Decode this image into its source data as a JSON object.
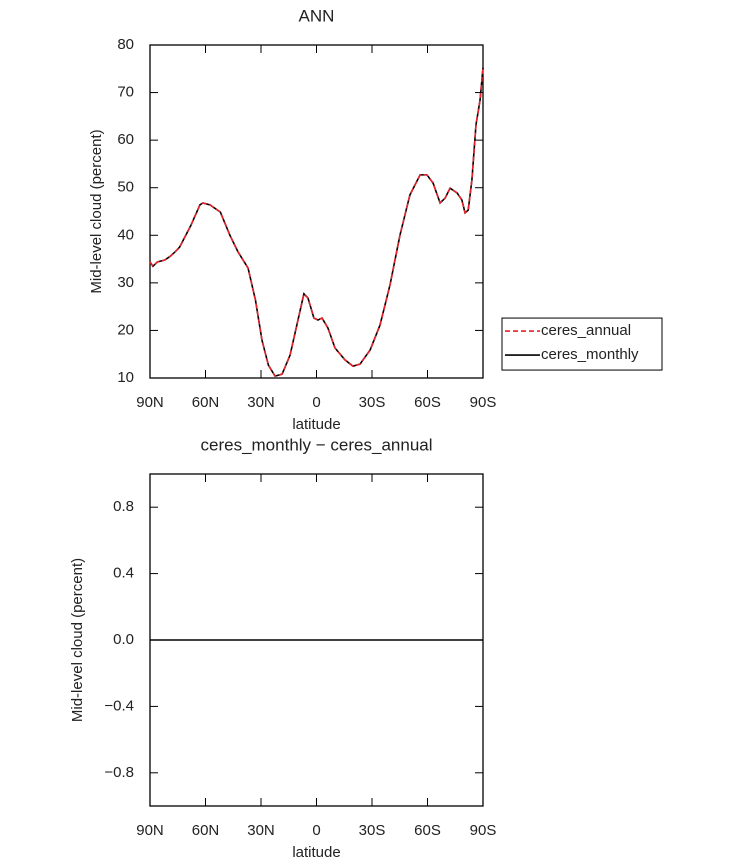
{
  "chart_data": [
    {
      "type": "line",
      "title": "ANN",
      "xlabel": "latitude",
      "ylabel": "Mid-level cloud (percent)",
      "x": [
        90,
        88.4,
        86,
        82,
        79,
        76.5,
        74,
        68,
        63,
        61.4,
        57.6,
        52,
        46.8,
        42.4,
        37,
        33,
        29.5,
        26,
        22.4,
        18.6,
        14.3,
        10,
        6.8,
        4.6,
        1.4,
        -0.8,
        -3,
        -6.2,
        -10,
        -15.4,
        -19.7,
        -23.5,
        -29,
        -34.3,
        -39.7,
        -45.1,
        -50.5,
        -56,
        -59.7,
        -63,
        -66.8,
        -69.5,
        -72.2,
        -76,
        -78.6,
        -80.3,
        -82,
        -84,
        -86.2,
        -88.4,
        -90
      ],
      "series": [
        {
          "name": "ceres_annual",
          "color": "#e8232a",
          "linestyle": "dashed",
          "values": [
            34.4,
            33.5,
            34.4,
            34.8,
            35.6,
            36.5,
            37.5,
            42,
            46.4,
            46.8,
            46.4,
            44.9,
            40,
            36.5,
            33.1,
            26.4,
            18,
            12.7,
            10.4,
            10.8,
            14.8,
            22.2,
            27.7,
            26.8,
            22.6,
            22.2,
            22.6,
            20.5,
            16.3,
            13.8,
            12.5,
            12.9,
            15.9,
            21.1,
            29.5,
            40,
            48.5,
            52.7,
            52.7,
            51,
            46.8,
            47.8,
            49.9,
            48.9,
            47.4,
            44.7,
            45.3,
            51.6,
            63.2,
            68.4,
            75.2
          ]
        },
        {
          "name": "ceres_monthly",
          "color": "#000000",
          "linestyle": "solid",
          "values": [
            34.4,
            33.5,
            34.4,
            34.8,
            35.6,
            36.5,
            37.5,
            42,
            46.4,
            46.8,
            46.4,
            44.9,
            40,
            36.5,
            33.1,
            26.4,
            18,
            12.7,
            10.4,
            10.8,
            14.8,
            22.2,
            27.7,
            26.8,
            22.6,
            22.2,
            22.6,
            20.5,
            16.3,
            13.8,
            12.5,
            12.9,
            15.9,
            21.1,
            29.5,
            40,
            48.5,
            52.7,
            52.7,
            51,
            46.8,
            47.8,
            49.9,
            48.9,
            47.4,
            44.7,
            45.3,
            51.6,
            63.2,
            68.4,
            75.2
          ]
        }
      ],
      "xlim": [
        90,
        -90
      ],
      "xticks": [
        {
          "value": 90,
          "label": "90N"
        },
        {
          "value": 60,
          "label": "60N"
        },
        {
          "value": 30,
          "label": "30N"
        },
        0,
        {
          "value": -30,
          "label": "30S"
        },
        {
          "value": -60,
          "label": "60S"
        },
        {
          "value": -90,
          "label": "90S"
        }
      ],
      "ylim": [
        10,
        80
      ],
      "yticks": [
        10,
        20,
        30,
        40,
        50,
        60,
        70,
        80
      ],
      "grid": false,
      "legend": "outside right"
    },
    {
      "type": "line",
      "title": "ceres_monthly − ceres_annual",
      "xlabel": "latitude",
      "ylabel": "Mid-level cloud (percent)",
      "x": [
        90,
        -90
      ],
      "series": [
        {
          "color": "#000000",
          "linestyle": "solid",
          "values": [
            0,
            0
          ]
        }
      ],
      "xlim": [
        90,
        -90
      ],
      "xticks": [
        {
          "value": 90,
          "label": "90N"
        },
        {
          "value": 60,
          "label": "60N"
        },
        {
          "value": 30,
          "label": "30N"
        },
        0,
        {
          "value": -30,
          "label": "30S"
        },
        {
          "value": -60,
          "label": "60S"
        },
        {
          "value": -90,
          "label": "90S"
        }
      ],
      "ylim": [
        -1,
        1
      ],
      "yticks": [
        {
          "value": -0.8,
          "label": "−0.8"
        },
        {
          "value": -0.4,
          "label": "−0.4"
        },
        {
          "value": 0,
          "label": "0.0"
        },
        0.4,
        0.8
      ],
      "grid": false
    }
  ]
}
